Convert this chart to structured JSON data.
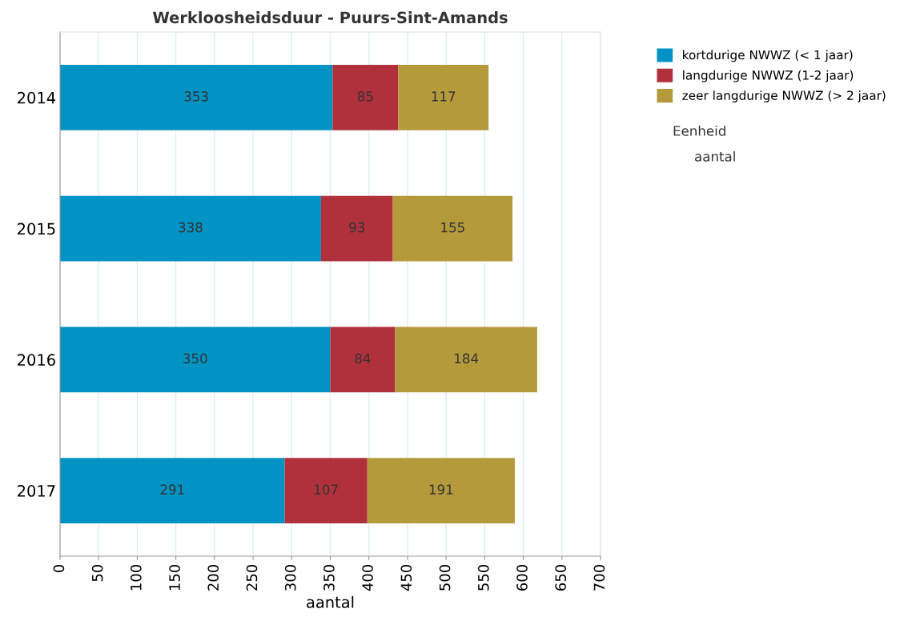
{
  "chart_data": {
    "type": "bar",
    "orientation": "horizontal",
    "stacked": true,
    "title": "Werkloosheidsduur - Puurs-Sint-Amands",
    "xlabel": "aantal",
    "categories": [
      "2014",
      "2015",
      "2016",
      "2017"
    ],
    "series": [
      {
        "name": "kortdurige NWWZ (< 1 jaar)",
        "color": "#0093c4",
        "values": [
          353,
          338,
          350,
          291
        ]
      },
      {
        "name": "langdurige NWWZ (1-2 jaar)",
        "color": "#b0303c",
        "values": [
          85,
          93,
          84,
          107
        ]
      },
      {
        "name": "zeer langdurige NWWZ (> 2 jaar)",
        "color": "#b59a3c",
        "values": [
          117,
          155,
          184,
          191
        ]
      }
    ],
    "xlim": [
      0,
      700
    ],
    "xticks": [
      0,
      50,
      100,
      150,
      200,
      250,
      300,
      350,
      400,
      450,
      500,
      550,
      600,
      650,
      700
    ],
    "grid": "x",
    "legend": "top right",
    "data_labels": true,
    "annotations": [
      "Eenheid",
      "aantal"
    ]
  }
}
